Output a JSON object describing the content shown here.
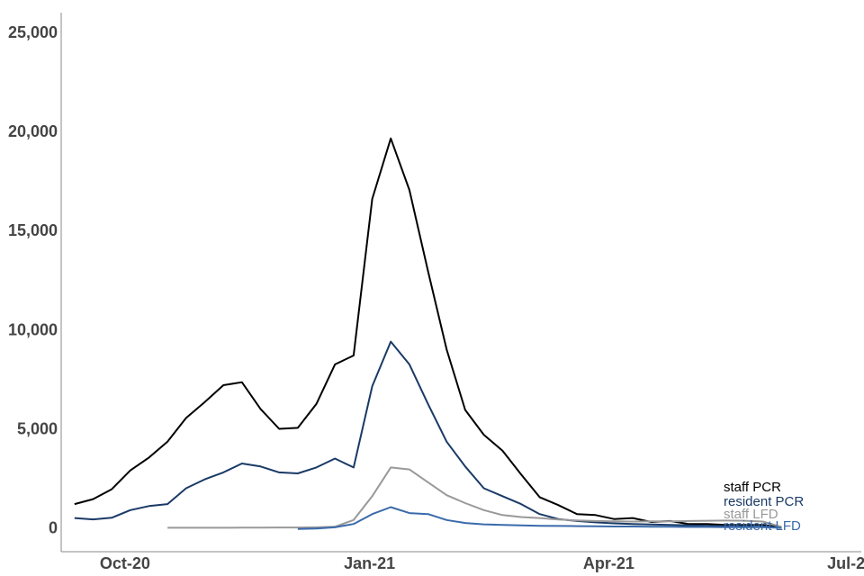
{
  "chart_data": {
    "type": "line",
    "title": "",
    "xlabel": "",
    "ylabel": "",
    "x_range": [
      "2020-09-07",
      "2021-07-05"
    ],
    "ylim": [
      -1200,
      26000
    ],
    "y_ticks": [
      0,
      5000,
      10000,
      15000,
      20000,
      25000
    ],
    "y_tick_labels": [
      "0",
      "5,000",
      "10,000",
      "15,000",
      "20,000",
      "25,000"
    ],
    "x_ticks": [
      "2020-10-01",
      "2021-01-01",
      "2021-04-01",
      "2021-07-01"
    ],
    "x_tick_labels": [
      "Oct-20",
      "Jan-21",
      "Apr-21",
      "Jul-21"
    ],
    "grid": false,
    "legend": "direct labels at right end of lines",
    "series": [
      {
        "name": "staff PCR",
        "color": "#000000",
        "points": [
          [
            "2020-09-12",
            1200
          ],
          [
            "2020-09-19",
            1450
          ],
          [
            "2020-09-26",
            1950
          ],
          [
            "2020-10-03",
            2900
          ],
          [
            "2020-10-10",
            3550
          ],
          [
            "2020-10-17",
            4350
          ],
          [
            "2020-10-24",
            5550
          ],
          [
            "2020-10-31",
            6350
          ],
          [
            "2020-11-07",
            7200
          ],
          [
            "2020-11-14",
            7350
          ],
          [
            "2020-11-21",
            6000
          ],
          [
            "2020-11-28",
            5000
          ],
          [
            "2020-12-05",
            5050
          ],
          [
            "2020-12-12",
            6250
          ],
          [
            "2020-12-19",
            8250
          ],
          [
            "2020-12-26",
            8700
          ],
          [
            "2021-01-02",
            16600
          ],
          [
            "2021-01-09",
            19650
          ],
          [
            "2021-01-16",
            17050
          ],
          [
            "2021-01-23",
            12950
          ],
          [
            "2021-01-30",
            9000
          ],
          [
            "2021-02-06",
            5950
          ],
          [
            "2021-02-13",
            4700
          ],
          [
            "2021-02-20",
            3900
          ],
          [
            "2021-02-27",
            2700
          ],
          [
            "2021-03-06",
            1550
          ],
          [
            "2021-03-13",
            1150
          ],
          [
            "2021-03-20",
            700
          ],
          [
            "2021-03-27",
            650
          ],
          [
            "2021-04-03",
            450
          ],
          [
            "2021-04-10",
            500
          ],
          [
            "2021-04-17",
            300
          ],
          [
            "2021-04-24",
            350
          ],
          [
            "2021-05-01",
            200
          ],
          [
            "2021-05-08",
            200
          ],
          [
            "2021-05-15",
            150
          ],
          [
            "2021-05-22",
            150
          ],
          [
            "2021-05-29",
            150
          ],
          [
            "2021-06-05",
            30
          ]
        ]
      },
      {
        "name": "resident PCR",
        "color": "#1a3a66",
        "points": [
          [
            "2020-09-12",
            500
          ],
          [
            "2020-09-19",
            430
          ],
          [
            "2020-09-26",
            510
          ],
          [
            "2020-10-03",
            900
          ],
          [
            "2020-10-10",
            1100
          ],
          [
            "2020-10-17",
            1200
          ],
          [
            "2020-10-24",
            2000
          ],
          [
            "2020-10-31",
            2450
          ],
          [
            "2020-11-07",
            2800
          ],
          [
            "2020-11-14",
            3250
          ],
          [
            "2020-11-21",
            3100
          ],
          [
            "2020-11-28",
            2800
          ],
          [
            "2020-12-05",
            2750
          ],
          [
            "2020-12-12",
            3050
          ],
          [
            "2020-12-19",
            3500
          ],
          [
            "2020-12-26",
            3050
          ],
          [
            "2021-01-02",
            7150
          ],
          [
            "2021-01-09",
            9400
          ],
          [
            "2021-01-16",
            8250
          ],
          [
            "2021-01-23",
            6250
          ],
          [
            "2021-01-30",
            4350
          ],
          [
            "2021-02-06",
            3100
          ],
          [
            "2021-02-13",
            2000
          ],
          [
            "2021-02-20",
            1600
          ],
          [
            "2021-02-27",
            1200
          ],
          [
            "2021-03-06",
            700
          ],
          [
            "2021-03-13",
            450
          ],
          [
            "2021-03-20",
            350
          ],
          [
            "2021-03-27",
            280
          ],
          [
            "2021-04-03",
            230
          ],
          [
            "2021-04-10",
            200
          ],
          [
            "2021-04-17",
            170
          ],
          [
            "2021-04-24",
            150
          ],
          [
            "2021-05-01",
            130
          ],
          [
            "2021-05-08",
            110
          ],
          [
            "2021-05-15",
            100
          ],
          [
            "2021-05-22",
            100
          ],
          [
            "2021-05-29",
            80
          ],
          [
            "2021-06-05",
            10
          ]
        ]
      },
      {
        "name": "staff LFD",
        "color": "#999999",
        "points": [
          [
            "2020-10-17",
            10
          ],
          [
            "2020-10-24",
            10
          ],
          [
            "2020-10-31",
            10
          ],
          [
            "2020-11-07",
            10
          ],
          [
            "2020-11-14",
            15
          ],
          [
            "2020-11-21",
            15
          ],
          [
            "2020-11-28",
            20
          ],
          [
            "2020-12-05",
            20
          ],
          [
            "2020-12-12",
            30
          ],
          [
            "2020-12-19",
            60
          ],
          [
            "2020-12-26",
            400
          ],
          [
            "2021-01-02",
            1600
          ],
          [
            "2021-01-09",
            3050
          ],
          [
            "2021-01-16",
            2950
          ],
          [
            "2021-01-23",
            2300
          ],
          [
            "2021-01-30",
            1650
          ],
          [
            "2021-02-06",
            1250
          ],
          [
            "2021-02-13",
            900
          ],
          [
            "2021-02-20",
            650
          ],
          [
            "2021-02-27",
            550
          ],
          [
            "2021-03-06",
            500
          ],
          [
            "2021-03-13",
            420
          ],
          [
            "2021-03-20",
            380
          ],
          [
            "2021-03-27",
            350
          ],
          [
            "2021-04-03",
            330
          ],
          [
            "2021-04-10",
            320
          ],
          [
            "2021-04-17",
            330
          ],
          [
            "2021-04-24",
            330
          ],
          [
            "2021-05-01",
            350
          ],
          [
            "2021-05-08",
            360
          ],
          [
            "2021-05-15",
            370
          ],
          [
            "2021-05-22",
            360
          ],
          [
            "2021-05-29",
            320
          ],
          [
            "2021-06-05",
            50
          ]
        ]
      },
      {
        "name": "resident LFD",
        "color": "#3a6aaa",
        "points": [
          [
            "2020-12-05",
            -50
          ],
          [
            "2020-12-12",
            -30
          ],
          [
            "2020-12-19",
            30
          ],
          [
            "2020-12-26",
            200
          ],
          [
            "2021-01-02",
            700
          ],
          [
            "2021-01-09",
            1050
          ],
          [
            "2021-01-16",
            750
          ],
          [
            "2021-01-23",
            700
          ],
          [
            "2021-01-30",
            400
          ],
          [
            "2021-02-06",
            250
          ],
          [
            "2021-02-13",
            180
          ],
          [
            "2021-02-20",
            150
          ],
          [
            "2021-02-27",
            130
          ],
          [
            "2021-03-06",
            110
          ],
          [
            "2021-03-13",
            100
          ],
          [
            "2021-03-20",
            90
          ],
          [
            "2021-03-27",
            80
          ],
          [
            "2021-04-03",
            70
          ],
          [
            "2021-04-10",
            70
          ],
          [
            "2021-04-17",
            60
          ],
          [
            "2021-04-24",
            60
          ],
          [
            "2021-05-01",
            50
          ],
          [
            "2021-05-08",
            50
          ],
          [
            "2021-05-15",
            40
          ],
          [
            "2021-05-22",
            40
          ],
          [
            "2021-05-29",
            40
          ],
          [
            "2021-06-05",
            5
          ]
        ]
      }
    ]
  }
}
